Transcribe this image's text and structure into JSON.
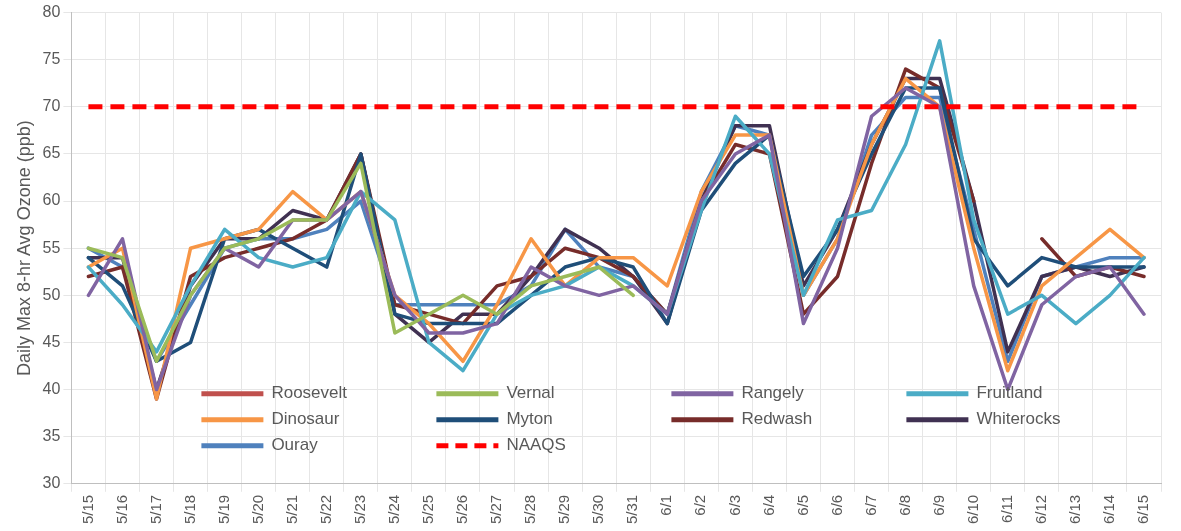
{
  "chart_data": {
    "type": "line",
    "ylabel": "Daily Max 8-hr Avg Ozone (ppb)",
    "categories": [
      "5/15",
      "5/16",
      "5/17",
      "5/18",
      "5/19",
      "5/20",
      "5/21",
      "5/22",
      "5/23",
      "5/24",
      "5/25",
      "5/26",
      "5/27",
      "5/28",
      "5/29",
      "5/30",
      "5/31",
      "6/1",
      "6/2",
      "6/3",
      "6/4",
      "6/5",
      "6/6",
      "6/7",
      "6/8",
      "6/9",
      "6/10",
      "6/11",
      "6/12",
      "6/13",
      "6/14",
      "6/15"
    ],
    "series": [
      {
        "name": "Roosevelt",
        "color": "#c0504d",
        "values": [
          null,
          null,
          null,
          null,
          null,
          null,
          null,
          null,
          null,
          null,
          null,
          null,
          null,
          null,
          null,
          null,
          null,
          null,
          null,
          null,
          null,
          null,
          null,
          null,
          null,
          null,
          null,
          null,
          null,
          null,
          null,
          null
        ]
      },
      {
        "name": "Vernal",
        "color": "#9bbb59",
        "values": [
          55,
          54,
          43,
          50,
          55,
          56,
          58,
          58,
          64,
          46,
          48,
          50,
          48,
          51,
          52,
          53,
          50,
          null,
          null,
          null,
          null,
          null,
          null,
          null,
          null,
          null,
          null,
          null,
          null,
          null,
          null,
          null
        ]
      },
      {
        "name": "Rangely",
        "color": "#8064a2",
        "values": [
          50,
          56,
          40,
          50,
          55,
          53,
          58,
          58,
          61,
          50,
          46,
          46,
          47,
          53,
          51,
          50,
          51,
          48,
          60,
          65,
          67,
          47,
          55,
          69,
          72,
          70,
          51,
          40,
          49,
          52,
          53,
          48
        ]
      },
      {
        "name": "Fruitland",
        "color": "#4bacc6",
        "values": [
          53,
          49,
          44,
          51,
          57,
          54,
          53,
          54,
          61,
          58,
          45,
          42,
          48,
          50,
          51,
          53,
          51,
          48,
          59,
          69,
          65,
          50,
          58,
          59,
          66,
          77,
          58,
          48,
          50,
          47,
          50,
          54
        ]
      },
      {
        "name": "Dinosaur",
        "color": "#f79646",
        "values": [
          53,
          55,
          39,
          55,
          56,
          57,
          61,
          58,
          61,
          50,
          47,
          43,
          49,
          56,
          51,
          54,
          54,
          51,
          61,
          67,
          67,
          50,
          56,
          66,
          73,
          70,
          55,
          42,
          51,
          54,
          57,
          54
        ]
      },
      {
        "name": "Myton",
        "color": "#1f4e79",
        "values": [
          54,
          51,
          43,
          45,
          56,
          57,
          55,
          53,
          65,
          48,
          47,
          47,
          47,
          50,
          53,
          54,
          53,
          47,
          59,
          64,
          67,
          52,
          57,
          65,
          72,
          72,
          56,
          51,
          54,
          53,
          53,
          53
        ]
      },
      {
        "name": "Redwash",
        "color": "#772c2a",
        "values": [
          52,
          53,
          39,
          52,
          54,
          55,
          56,
          58,
          65,
          49,
          48,
          47,
          51,
          52,
          55,
          54,
          52,
          48,
          60,
          66,
          65,
          48,
          52,
          64,
          74,
          72,
          60,
          null,
          56,
          52,
          53,
          52
        ]
      },
      {
        "name": "Whiterocks",
        "color": "#403152",
        "values": [
          54,
          54,
          40,
          51,
          56,
          56,
          59,
          58,
          65,
          48,
          45,
          48,
          48,
          52,
          57,
          55,
          52,
          47,
          60,
          68,
          68,
          51,
          57,
          66,
          73,
          73,
          60,
          44,
          52,
          53,
          52,
          53
        ]
      },
      {
        "name": "Ouray",
        "color": "#4f81bd",
        "values": [
          55,
          53,
          43,
          49,
          55,
          56,
          56,
          57,
          60,
          49,
          49,
          49,
          49,
          51,
          57,
          53,
          52,
          48,
          61,
          68,
          67,
          50,
          56,
          67,
          71,
          71,
          57,
          43,
          52,
          53,
          54,
          54
        ]
      }
    ],
    "ref_lines": [
      {
        "axis": "y",
        "value": 70,
        "label": "NAAQS",
        "color": "#ff0000",
        "line_style": "dashed"
      }
    ],
    "ylim": [
      30,
      80
    ],
    "yticks": [
      30,
      35,
      40,
      45,
      50,
      55,
      60,
      65,
      70,
      75,
      80
    ],
    "grid": true,
    "legend": "bottom",
    "marker": "none",
    "line_style": "solid"
  }
}
